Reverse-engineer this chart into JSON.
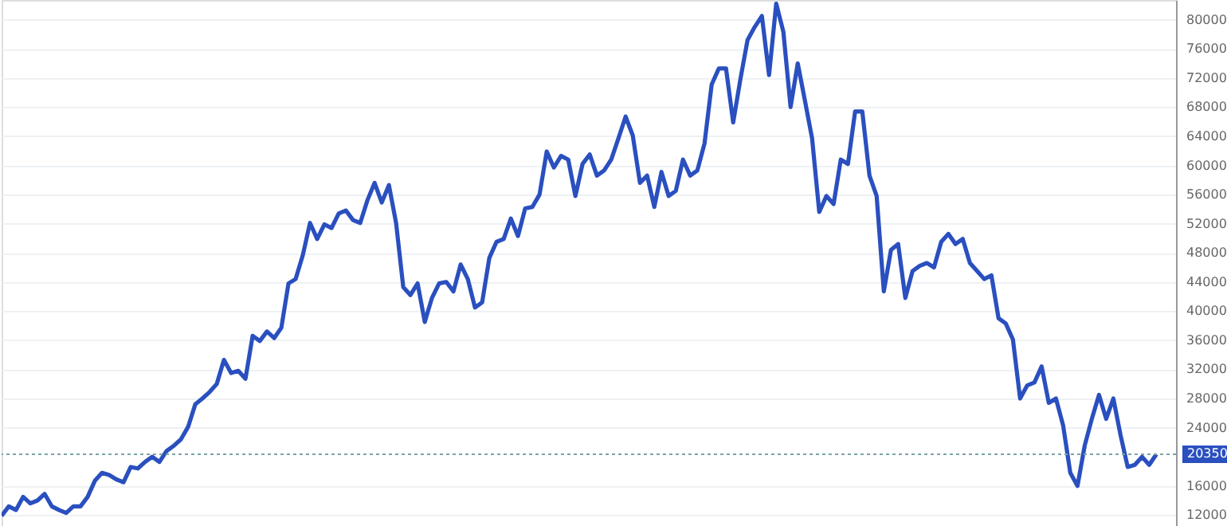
{
  "chart_data": {
    "type": "line",
    "categories": [
      null,
      null,
      null,
      null,
      null,
      null,
      null,
      null,
      null,
      null,
      null,
      null,
      null,
      null,
      null,
      null,
      null,
      null,
      null,
      null,
      null,
      null,
      null,
      null,
      null,
      null,
      null,
      null,
      null,
      null,
      null,
      null,
      null,
      null,
      null,
      null,
      null,
      null,
      null,
      null,
      null,
      null,
      null,
      null,
      null,
      null,
      null,
      null,
      null,
      null,
      null,
      null,
      null,
      null,
      null,
      null,
      null,
      null,
      null,
      null,
      null,
      null,
      null,
      null,
      null,
      null,
      null,
      null,
      null,
      null,
      null,
      null,
      null,
      null,
      null,
      null,
      null,
      null,
      null,
      null,
      null,
      null,
      null,
      null,
      null,
      null,
      null,
      null,
      null,
      null,
      null,
      null,
      null,
      null,
      null,
      null,
      null,
      null,
      null,
      null,
      null,
      null,
      null,
      null,
      null,
      null,
      null,
      null,
      null,
      null,
      null,
      null,
      null,
      null,
      null,
      null,
      null,
      null,
      null,
      null,
      null,
      null,
      null,
      null,
      null,
      null,
      null,
      null,
      null,
      null,
      null,
      null,
      null,
      null,
      null,
      null,
      null,
      null,
      null,
      null,
      null,
      null,
      null,
      null,
      null,
      null,
      null,
      null,
      null,
      null,
      null,
      null,
      null,
      null,
      null,
      null,
      null,
      null,
      null,
      null,
      null,
      null
    ],
    "series": [
      {
        "color": "#2a4fbf",
        "values": [
          11900,
          13200,
          12700,
          14500,
          13600,
          14000,
          14900,
          13200,
          12700,
          12300,
          13200,
          13200,
          14500,
          16700,
          17800,
          17500,
          16900,
          16500,
          18600,
          18400,
          19300,
          20000,
          19300,
          20800,
          21500,
          22400,
          24100,
          27200,
          28000,
          28900,
          30000,
          33300,
          31500,
          31800,
          30700,
          36600,
          35900,
          37200,
          36300,
          37700,
          43800,
          44400,
          47700,
          52100,
          49900,
          51900,
          51400,
          53400,
          53800,
          52500,
          52100,
          55200,
          57600,
          54900,
          57300,
          52100,
          43300,
          42200,
          43800,
          38500,
          41800,
          43800,
          44000,
          42700,
          46400,
          44400,
          40500,
          41200,
          47300,
          49500,
          49900,
          52700,
          50300,
          54100,
          54300,
          56000,
          61900,
          59700,
          61300,
          60800,
          55800,
          60200,
          61500,
          58600,
          59300,
          60800,
          63700,
          66700,
          64100,
          57600,
          58600,
          54300,
          59100,
          55800,
          56500,
          60800,
          58600,
          59300,
          63000,
          71100,
          73300,
          73300,
          65900,
          71800,
          77200,
          79000,
          80500,
          72400,
          82200,
          78300,
          68000,
          74000,
          68900,
          63700,
          53600,
          55800,
          54700,
          60800,
          60200,
          67400,
          67400,
          58600,
          55800,
          42700,
          48400,
          49200,
          41800,
          45500,
          46200,
          46600,
          46000,
          49500,
          50600,
          49200,
          49900,
          46600,
          45500,
          44400,
          44900,
          39000,
          38300,
          36100,
          28000,
          29800,
          30200,
          32400,
          27400,
          28000,
          24300,
          17800,
          16000,
          21500,
          25200,
          28500,
          25200,
          28000,
          23000,
          18600,
          18900,
          20000,
          18900,
          20350
        ]
      }
    ],
    "ylim": [
      10500,
      82700
    ],
    "yticks": [
      12000,
      16000,
      24000,
      28000,
      32000,
      36000,
      40000,
      44000,
      48000,
      52000,
      56000,
      60000,
      64000,
      68000,
      72000,
      76000,
      80000
    ],
    "ref_lines": [
      {
        "axis": "y",
        "value": 20350,
        "label": "20350",
        "color": "#7aa3a8",
        "line_style": "dotted"
      }
    ],
    "grid": "y",
    "tick_labels": "y",
    "marker": "none",
    "line_style": "solid"
  }
}
